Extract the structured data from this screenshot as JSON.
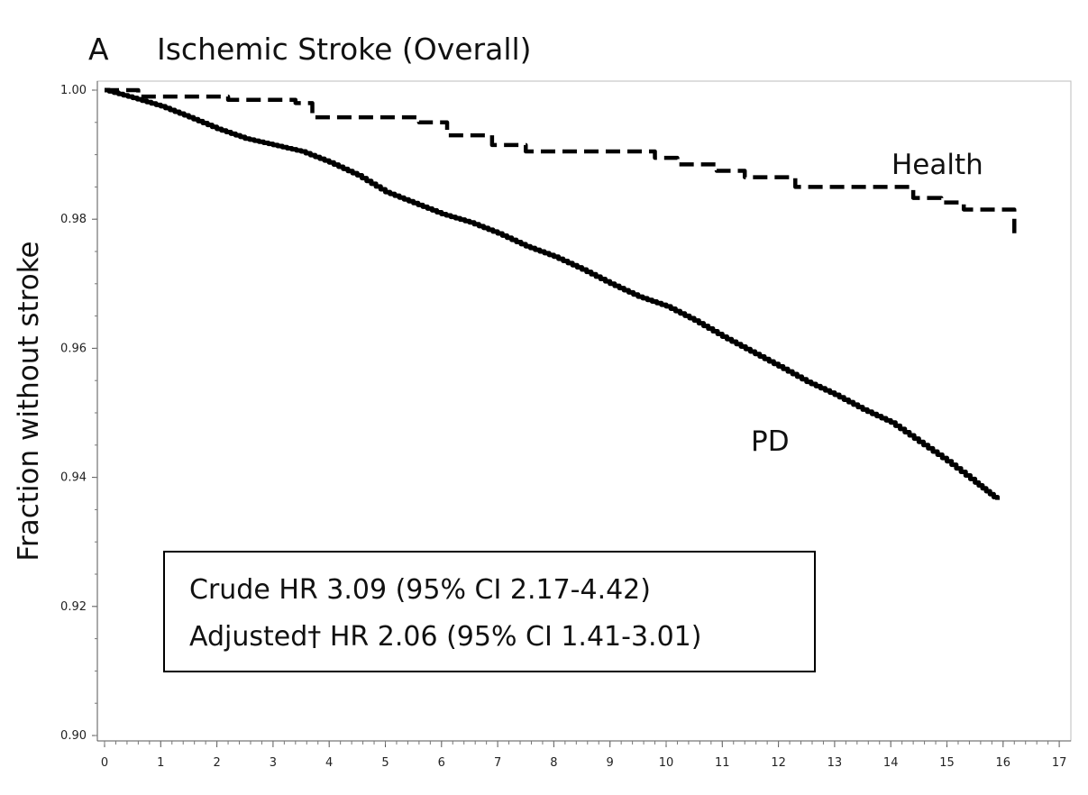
{
  "chart_data": {
    "type": "line",
    "panel_letter": "A",
    "title": "Ischemic Stroke (Overall)",
    "xlabel": "",
    "ylabel": "Fraction without stroke",
    "xlim": [
      0,
      17
    ],
    "ylim": [
      0.9,
      1.0
    ],
    "x_ticks": [
      "0",
      "1",
      "2",
      "3",
      "4",
      "5",
      "6",
      "7",
      "8",
      "9",
      "10",
      "11",
      "12",
      "13",
      "14",
      "15",
      "16",
      "17"
    ],
    "y_ticks": [
      "0.90",
      "0.92",
      "0.94",
      "0.96",
      "0.98",
      "1.00"
    ],
    "grid": false,
    "series": [
      {
        "name": "Health",
        "line_style": "dashed",
        "color": "#000000",
        "step": true,
        "x": [
          0,
          0.6,
          1.0,
          2.2,
          3.4,
          3.7,
          5.6,
          6.1,
          6.9,
          7.5,
          9.8,
          10.2,
          10.9,
          11.4,
          12.3,
          14.4,
          14.9,
          15.3,
          16.2,
          16.2
        ],
        "y": [
          1.0,
          0.999,
          0.999,
          0.9985,
          0.998,
          0.9958,
          0.995,
          0.993,
          0.9915,
          0.9905,
          0.9895,
          0.9885,
          0.9875,
          0.9865,
          0.985,
          0.9833,
          0.9826,
          0.9815,
          0.98,
          0.9768
        ]
      },
      {
        "name": "PD",
        "line_style": "solid",
        "color": "#000000",
        "step": false,
        "x": [
          0,
          0.5,
          1.0,
          1.5,
          2.0,
          2.5,
          3.0,
          3.5,
          4.0,
          4.5,
          5.0,
          5.5,
          6.0,
          6.5,
          7.0,
          7.5,
          8.0,
          8.5,
          9.0,
          9.5,
          10.0,
          10.5,
          11.0,
          11.5,
          12.0,
          12.5,
          13.0,
          13.5,
          14.0,
          14.5,
          15.0,
          15.5,
          15.9
        ],
        "y": [
          1.0,
          0.9988,
          0.9975,
          0.9958,
          0.994,
          0.9925,
          0.9915,
          0.9905,
          0.9888,
          0.9868,
          0.9842,
          0.9825,
          0.9808,
          0.9795,
          0.9778,
          0.9758,
          0.9742,
          0.9722,
          0.97,
          0.968,
          0.9665,
          0.9643,
          0.9618,
          0.9595,
          0.9572,
          0.9548,
          0.9528,
          0.9505,
          0.9485,
          0.9455,
          0.9425,
          0.9392,
          0.9365
        ]
      }
    ],
    "series_labels": [
      {
        "text": "Health",
        "x": 14.0,
        "y": 0.9845
      },
      {
        "text": "PD",
        "x": 11.5,
        "y": 0.945
      }
    ],
    "annotation": {
      "lines": [
        "Crude HR 3.09 (95% CI 2.17-4.42)",
        "Adjusted† HR 2.06 (95% CI 1.41-3.01)"
      ]
    }
  }
}
